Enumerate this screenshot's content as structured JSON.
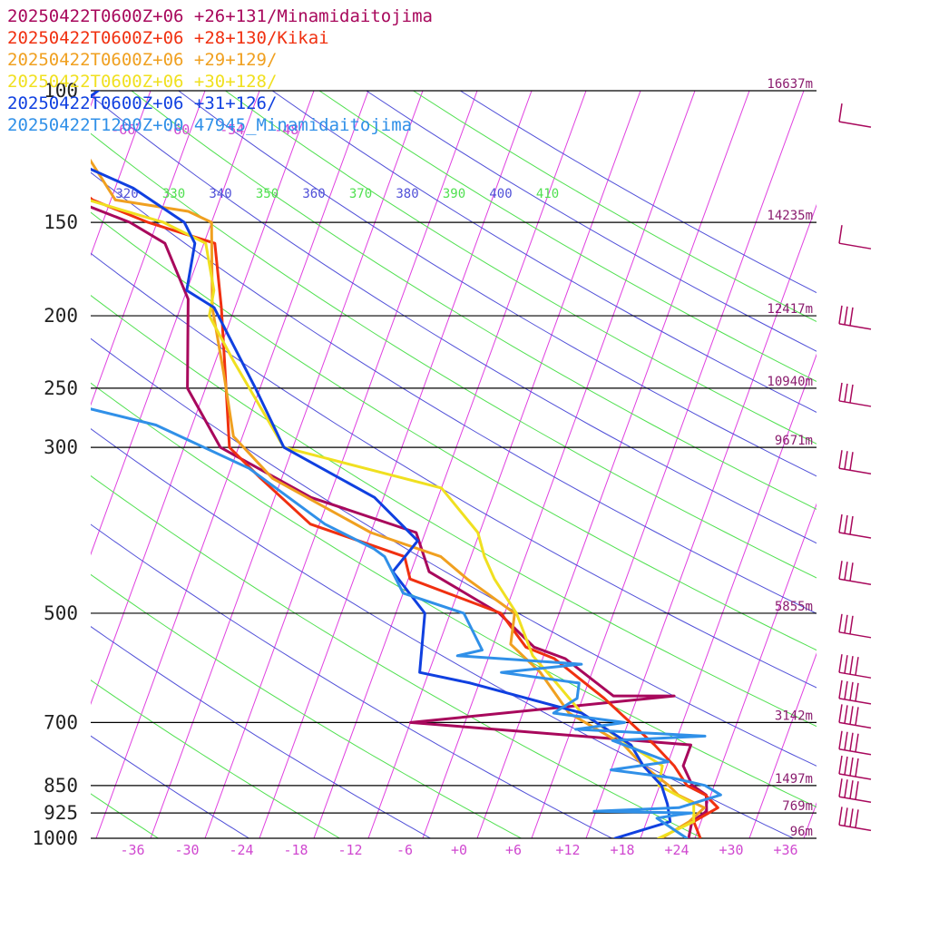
{
  "chart_data": {
    "type": "line",
    "chart_kind": "skew-t",
    "legend": [
      {
        "label": "20250422T0600Z+06 +26+131/Minamidaitojima",
        "color": "#a8085c"
      },
      {
        "label": "20250422T0600Z+06 +28+130/Kikai",
        "color": "#f03010"
      },
      {
        "label": "20250422T0600Z+06 +29+129/",
        "color": "#f0a020"
      },
      {
        "label": "20250422T0600Z+06 +30+128/",
        "color": "#f0e020"
      },
      {
        "label": "20250422T0600Z+06 +31+126/",
        "color": "#1040e0"
      },
      {
        "label": "20250422T1200Z+00 47945_Minamidaitojima",
        "color": "#3090e8"
      }
    ],
    "pressure_levels": [
      {
        "p": 100,
        "label": "100",
        "height": "16637m"
      },
      {
        "p": 150,
        "label": "150",
        "height": "14235m"
      },
      {
        "p": 200,
        "label": "200",
        "height": "12417m"
      },
      {
        "p": 250,
        "label": "250",
        "height": "10940m"
      },
      {
        "p": 300,
        "label": "300",
        "height": "9671m"
      },
      {
        "p": 500,
        "label": "500",
        "height": "5855m"
      },
      {
        "p": 700,
        "label": "700",
        "height": "3142m"
      },
      {
        "p": 850,
        "label": "850",
        "height": "1497m"
      },
      {
        "p": 925,
        "label": "925",
        "height": "769m"
      },
      {
        "p": 1000,
        "label": "1000",
        "height": "96m"
      }
    ],
    "x_ticks": [
      "-36",
      "-30",
      "-24",
      "-18",
      "-12",
      "-6",
      "+0",
      "+6",
      "+12",
      "+18",
      "+24",
      "+30",
      "+36"
    ],
    "x_tick_values": [
      -36,
      -30,
      -24,
      -18,
      -12,
      -6,
      0,
      6,
      12,
      18,
      24,
      30,
      36
    ],
    "upper_isotherm_labels": [
      "-66",
      "-60",
      "-54",
      "-48"
    ],
    "theta_labels": [
      {
        "label": "320",
        "color": "#5050d8"
      },
      {
        "label": "330",
        "color": "#50e050"
      },
      {
        "label": "340",
        "color": "#5050d8"
      },
      {
        "label": "350",
        "color": "#50e050"
      },
      {
        "label": "360",
        "color": "#5050d8"
      },
      {
        "label": "370",
        "color": "#50e050"
      },
      {
        "label": "380",
        "color": "#5050d8"
      },
      {
        "label": "390",
        "color": "#50e050"
      },
      {
        "label": "400",
        "color": "#5050d8"
      },
      {
        "label": "410",
        "color": "#50e050"
      }
    ],
    "xlim_temp_c": [
      -40,
      40
    ],
    "ylim_hpa": [
      1000,
      100
    ],
    "grid": true,
    "colors": {
      "isotherm": "#e040e0",
      "dry_adiabat_a": "#5050d8",
      "dry_adiabat_b": "#50e050",
      "isobar": "#000000",
      "barb": "#a8085c"
    },
    "series": [
      {
        "name": "20250422T0600Z+06 +26+131/Minamidaitojima",
        "color": "#a8085c",
        "points": [
          [
            25.3,
            1000
          ],
          [
            25,
            950
          ],
          [
            26.2,
            920
          ],
          [
            25.5,
            875
          ],
          [
            23.6,
            850
          ],
          [
            21.8,
            800
          ],
          [
            21.8,
            750
          ],
          [
            -10,
            700
          ],
          [
            18,
            645
          ],
          [
            11.3,
            645
          ],
          [
            4.5,
            575
          ],
          [
            0.6,
            555
          ],
          [
            -4.6,
            500
          ],
          [
            -14,
            440
          ],
          [
            -17,
            390
          ],
          [
            -30,
            350
          ],
          [
            -42,
            300
          ],
          [
            -48,
            250
          ],
          [
            -51.5,
            190
          ],
          [
            -56.3,
            160
          ],
          [
            -61,
            150
          ],
          [
            -76,
            130
          ],
          [
            -79.6,
            120
          ],
          [
            -75,
            112
          ],
          [
            -76,
            106
          ],
          [
            -74.2,
            100
          ],
          [
            -73.5,
            95
          ],
          [
            -72.8,
            75
          ],
          [
            -70.5,
            73
          ],
          [
            -65.4,
            68
          ],
          [
            -59.5,
            65
          ],
          [
            -54.5,
            63
          ],
          [
            -42.3,
            60
          ],
          [
            -27.3,
            55
          ]
        ]
      },
      {
        "name": "20250422T0600Z+06 +28+130/Kikai",
        "color": "#f03010",
        "points": [
          [
            26.6,
            1000
          ],
          [
            25.2,
            950
          ],
          [
            27.3,
            910
          ],
          [
            25.4,
            875
          ],
          [
            23,
            850
          ],
          [
            20.8,
            800
          ],
          [
            17.8,
            750
          ],
          [
            10.4,
            650
          ],
          [
            3.3,
            575
          ],
          [
            -0.3,
            555
          ],
          [
            -4.4,
            500
          ],
          [
            -15.8,
            450
          ],
          [
            -17.3,
            420
          ],
          [
            -29,
            380
          ],
          [
            -36.3,
            330
          ],
          [
            -41,
            300
          ],
          [
            -45,
            230
          ],
          [
            -47.5,
            195
          ],
          [
            -50.8,
            160
          ],
          [
            -59,
            150
          ],
          [
            -66,
            140
          ],
          [
            -75,
            120
          ],
          [
            -77,
            100
          ],
          [
            -76,
            95
          ],
          [
            -72,
            85
          ],
          [
            -68,
            75
          ],
          [
            -64,
            70
          ],
          [
            -56.5,
            65
          ],
          [
            -45.5,
            63
          ],
          [
            -31.3,
            60
          ],
          [
            -23.5,
            55
          ]
        ]
      },
      {
        "name": "20250422T0600Z+06 +29+129/",
        "color": "#f0a020",
        "points": [
          [
            22.3,
            1000
          ],
          [
            24.7,
            950
          ],
          [
            25.8,
            910
          ],
          [
            22.4,
            875
          ],
          [
            21,
            850
          ],
          [
            17.4,
            800
          ],
          [
            14.4,
            750
          ],
          [
            7.1,
            680
          ],
          [
            2.3,
            600
          ],
          [
            -2.1,
            550
          ],
          [
            -2.9,
            500
          ],
          [
            -9.5,
            450
          ],
          [
            -13.3,
            420
          ],
          [
            -22,
            390
          ],
          [
            -35,
            330
          ],
          [
            -41,
            290
          ],
          [
            -44.5,
            240
          ],
          [
            -48.5,
            195
          ],
          [
            -52,
            150
          ],
          [
            -55,
            145
          ],
          [
            -63.5,
            140
          ],
          [
            -69,
            120
          ],
          [
            -73,
            100
          ],
          [
            -72,
            90
          ],
          [
            -69.3,
            80
          ],
          [
            -63.8,
            70
          ],
          [
            -58,
            65
          ],
          [
            -49,
            62
          ],
          [
            -41.5,
            59
          ],
          [
            -33,
            55
          ]
        ]
      },
      {
        "name": "20250422T0600Z+06 +30+128/",
        "color": "#f0e020",
        "points": [
          [
            22,
            1000
          ],
          [
            25.2,
            950
          ],
          [
            24.5,
            900
          ],
          [
            19.9,
            850
          ],
          [
            19.5,
            800
          ],
          [
            15,
            750
          ],
          [
            8.5,
            680
          ],
          [
            4.5,
            620
          ],
          [
            0.8,
            570
          ],
          [
            -2.7,
            500
          ],
          [
            -6.5,
            450
          ],
          [
            -8.5,
            420
          ],
          [
            -10.2,
            390
          ],
          [
            -16,
            340
          ],
          [
            -35,
            300
          ],
          [
            -44,
            230
          ],
          [
            -48.5,
            200
          ],
          [
            -49,
            185
          ],
          [
            -51.8,
            160
          ],
          [
            -57.3,
            150
          ],
          [
            -66.5,
            140
          ],
          [
            -72,
            120
          ],
          [
            -74,
            105
          ],
          [
            -72.5,
            95
          ],
          [
            -71.5,
            85
          ],
          [
            -66.5,
            75
          ],
          [
            -60.5,
            70
          ],
          [
            -55.3,
            65
          ],
          [
            -51,
            62
          ],
          [
            -41.2,
            60
          ],
          [
            -30.4,
            55
          ]
        ]
      },
      {
        "name": "20250422T0600Z+06 +31+126/",
        "color": "#1040e0",
        "points": [
          [
            17.2,
            1000
          ],
          [
            22.6,
            950
          ],
          [
            21.6,
            900
          ],
          [
            20.2,
            850
          ],
          [
            17.4,
            800
          ],
          [
            15.2,
            750
          ],
          [
            8.5,
            680
          ],
          [
            -5,
            620
          ],
          [
            -11,
            600
          ],
          [
            -12.8,
            500
          ],
          [
            -18,
            440
          ],
          [
            -16.5,
            400
          ],
          [
            -23,
            350
          ],
          [
            -35,
            300
          ],
          [
            -40.5,
            250
          ],
          [
            -48.3,
            195
          ],
          [
            -52,
            185
          ],
          [
            -53,
            160
          ],
          [
            -55,
            150
          ],
          [
            -62,
            135
          ],
          [
            -73,
            120
          ],
          [
            -71.5,
            105
          ],
          [
            -68,
            95
          ],
          [
            -63,
            80
          ],
          [
            -57.5,
            70
          ],
          [
            -53,
            65
          ],
          [
            -45,
            60
          ],
          [
            -36.7,
            55
          ]
        ]
      },
      {
        "name": "20250422T1200Z+00 47945_Minamidaitojima",
        "color": "#3090e8",
        "points": [
          [
            25.1,
            1000
          ],
          [
            21,
            940
          ],
          [
            23.2,
            930
          ],
          [
            24.6,
            925
          ],
          [
            13.8,
            920
          ],
          [
            23,
            910
          ],
          [
            27.1,
            875
          ],
          [
            25,
            850
          ],
          [
            21,
            830
          ],
          [
            14,
            810
          ],
          [
            20,
            790
          ],
          [
            13,
            740
          ],
          [
            23,
            730
          ],
          [
            8.5,
            715
          ],
          [
            13.6,
            700
          ],
          [
            5.4,
            680
          ],
          [
            7.4,
            650
          ],
          [
            7,
            620
          ],
          [
            -2,
            600
          ],
          [
            6.5,
            585
          ],
          [
            -7.5,
            570
          ],
          [
            -5,
            560
          ],
          [
            -8.5,
            500
          ],
          [
            -16,
            470
          ],
          [
            -19.5,
            420
          ],
          [
            -21,
            410
          ],
          [
            -27.4,
            380
          ],
          [
            -38,
            320
          ],
          [
            -50,
            280
          ],
          [
            -68,
            250
          ],
          [
            -78,
            230
          ],
          [
            -97,
            210
          ],
          [
            -106,
            190
          ],
          [
            -115,
            160
          ],
          [
            -122,
            130
          ],
          [
            -123.5,
            100
          ],
          [
            -110,
            80
          ],
          [
            -99,
            70
          ],
          [
            -95,
            60
          ]
        ]
      }
    ]
  }
}
